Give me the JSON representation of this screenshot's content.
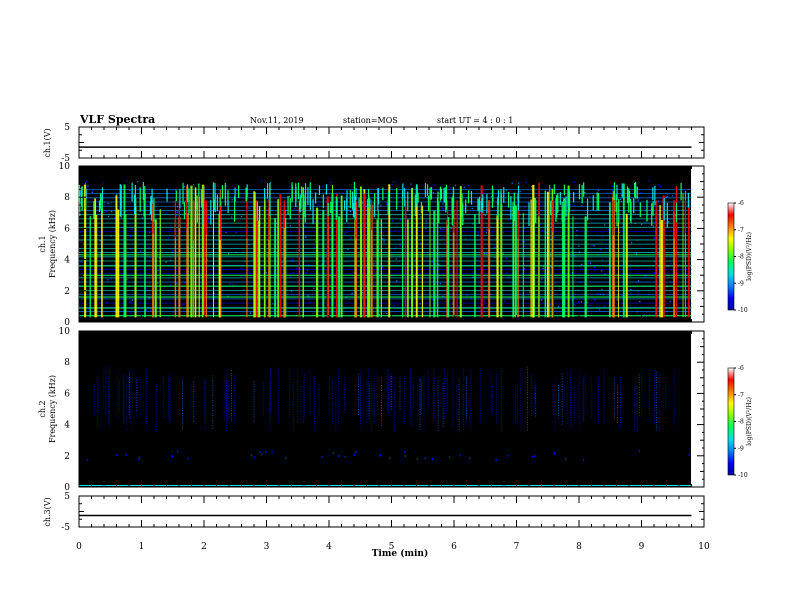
{
  "header": {
    "title": "VLF Spectra",
    "date": "Nov.11, 2019",
    "station": "station=MOS",
    "start_ut": "start  UT =   4 : 0  : 1"
  },
  "chart_data": [
    {
      "type": "line",
      "panel": "ch1",
      "ylabel": "ch.1(V)",
      "ylim": [
        -5,
        5
      ],
      "yticks": [
        5,
        -5
      ],
      "series": [
        {
          "x": [
            0,
            9.8
          ],
          "values": [
            -1.5,
            -1.5
          ]
        }
      ]
    },
    {
      "type": "heatmap",
      "panel": "spec1",
      "ylabel_line1": "ch.1",
      "ylabel_line2": "Frequency (kHz)",
      "ylim": [
        0,
        10
      ],
      "yticks": [
        0,
        2,
        4,
        6,
        8,
        10
      ],
      "colorbar": {
        "label": "log(PSD)(V²/Hz)",
        "ticks": [
          -6,
          -7,
          -8,
          -9,
          -10
        ],
        "range": [
          -10,
          -6
        ]
      },
      "data_extent_min": [
        0,
        9.8
      ]
    },
    {
      "type": "heatmap",
      "panel": "spec2",
      "ylabel_line1": "ch.2",
      "ylabel_line2": "Frequency (kHz)",
      "ylim": [
        0,
        10
      ],
      "yticks": [
        0,
        2,
        4,
        6,
        8,
        10
      ],
      "colorbar": {
        "label": "log(PSD)(V²/Hz)",
        "ticks": [
          -6,
          -7,
          -8,
          -9,
          -10
        ],
        "range": [
          -10,
          -6
        ]
      },
      "data_extent_min": [
        0,
        9.8
      ]
    },
    {
      "type": "line",
      "panel": "ch3",
      "ylabel": "ch.3(V)",
      "ylim": [
        -5,
        5
      ],
      "yticks": [
        5,
        -5
      ],
      "series": [
        {
          "x": [
            0,
            9.8
          ],
          "values": [
            -1.3,
            -1.3
          ]
        }
      ]
    }
  ],
  "xaxis": {
    "label": "Time (min)",
    "ticks": [
      0,
      1,
      2,
      3,
      4,
      5,
      6,
      7,
      8,
      9,
      10
    ],
    "xlim": [
      0,
      10
    ]
  },
  "colormap": [
    "#000000",
    "#0000a0",
    "#0000ff",
    "#0080ff",
    "#00e0e0",
    "#00ff60",
    "#80ff00",
    "#ffff00",
    "#ff8000",
    "#ff0000",
    "#ffffff"
  ]
}
